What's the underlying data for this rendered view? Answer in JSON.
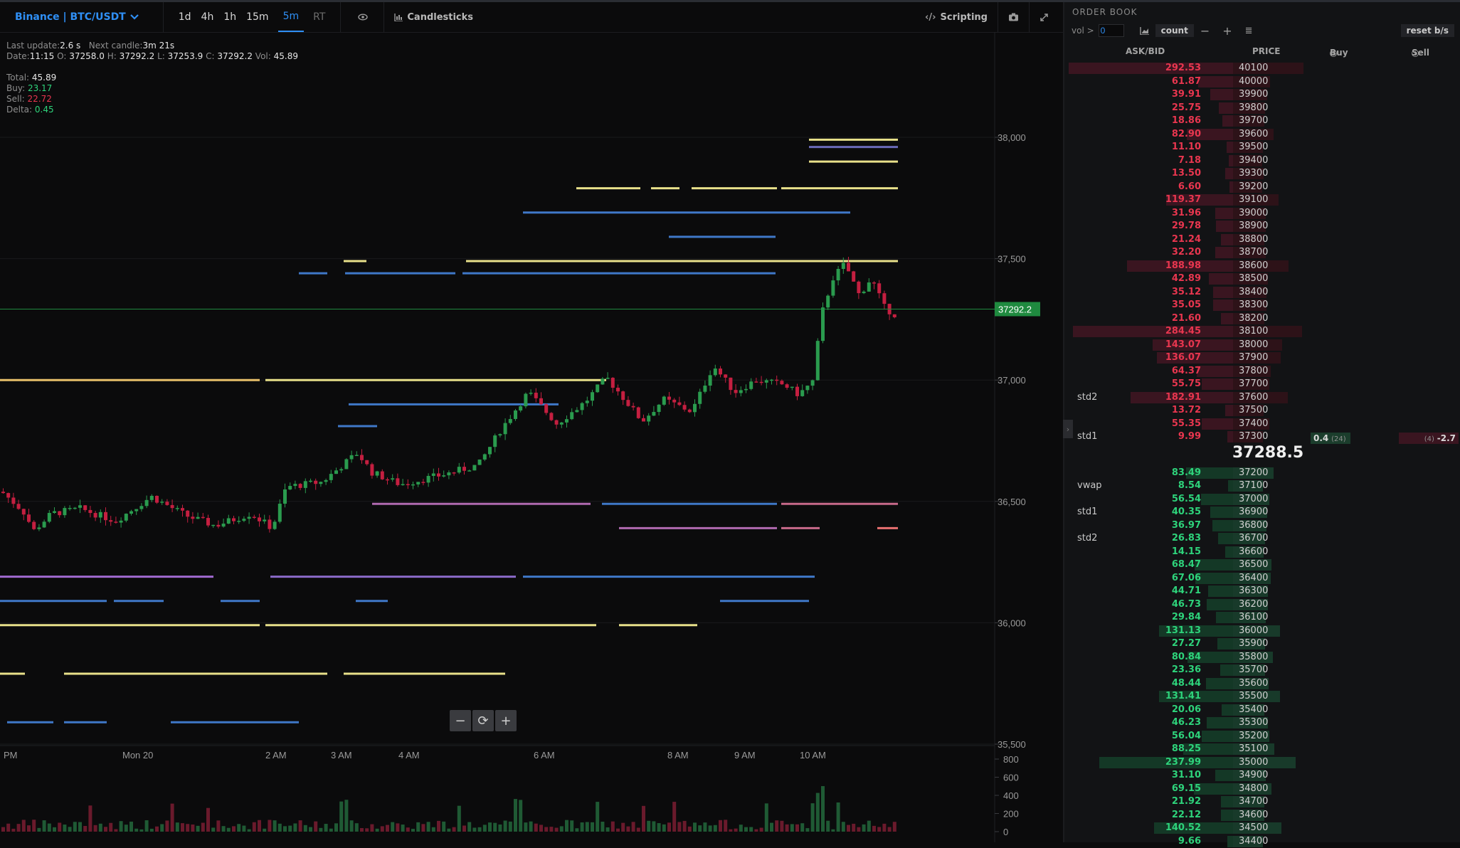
{
  "toolbar": {
    "symbol": "Binance | BTC/USDT",
    "timeframes": [
      "1d",
      "4h",
      "1h",
      "15m",
      "5m",
      "RT"
    ],
    "active_timeframe": "5m",
    "candles_label": "Candlesticks",
    "scripting_label": "Scripting"
  },
  "info": {
    "last_update_label": "Last update:",
    "last_update": "2.6 s",
    "next_candle_label": "Next candle:",
    "next_candle": "3m 21s",
    "date_label": "Date:",
    "date": "11:15",
    "open_label": "O:",
    "open": "37258.0",
    "high_label": "H:",
    "high": "37292.2",
    "low_label": "L:",
    "low": "37253.9",
    "close_label": "C:",
    "close": "37292.2",
    "vol_label": "Vol:",
    "vol": "45.89",
    "total_label": "Total:",
    "total": "45.89",
    "buy_label": "Buy:",
    "buy": "23.17",
    "sell_label": "Sell:",
    "sell": "22.72",
    "delta_label": "Delta:",
    "delta": "0.45"
  },
  "chart_data": {
    "type": "candlestick",
    "y_ticks": [
      "38,000",
      "37,500",
      "37,000",
      "36,500",
      "36,000",
      "35,500"
    ],
    "y_tick_values": [
      38000,
      37500,
      37000,
      36500,
      36000,
      35500
    ],
    "ylim": [
      35500,
      38500
    ],
    "x_ticks": [
      "PM",
      "Mon 20",
      "2 AM",
      "3 AM",
      "4 AM",
      "6 AM",
      "8 AM",
      "9 AM",
      "10 AM"
    ],
    "volume_ticks": [
      "800",
      "600",
      "400",
      "200",
      "0"
    ],
    "volume_tick_values": [
      800,
      600,
      400,
      200,
      0
    ],
    "last_price_label": "37292.2",
    "last_price": 37292.2
  },
  "orderbook": {
    "title": "ORDER BOOK",
    "vol_label": "vol >",
    "vol_value": "0",
    "count_label": "count",
    "reset_label": "reset b/s",
    "col_askbid": "ASK/BID",
    "col_price": "PRICE",
    "col_buy": "Buy",
    "col_sell": "Sell",
    "mid_price": "37288.5",
    "buy_at_level": "0.4",
    "buy_count": "(24)",
    "sell_count": "(4)",
    "sell_at_level": "-2.7",
    "asks": [
      {
        "amt": "292.53",
        "price": "40100"
      },
      {
        "amt": "61.87",
        "price": "40000"
      },
      {
        "amt": "39.91",
        "price": "39900"
      },
      {
        "amt": "25.75",
        "price": "39800"
      },
      {
        "amt": "18.86",
        "price": "39700"
      },
      {
        "amt": "82.90",
        "price": "39600"
      },
      {
        "amt": "11.10",
        "price": "39500"
      },
      {
        "amt": "7.18",
        "price": "39400"
      },
      {
        "amt": "13.50",
        "price": "39300"
      },
      {
        "amt": "6.60",
        "price": "39200"
      },
      {
        "amt": "119.37",
        "price": "39100"
      },
      {
        "amt": "31.96",
        "price": "39000"
      },
      {
        "amt": "29.78",
        "price": "38900"
      },
      {
        "amt": "21.24",
        "price": "38800"
      },
      {
        "amt": "32.20",
        "price": "38700"
      },
      {
        "amt": "188.98",
        "price": "38600"
      },
      {
        "amt": "42.89",
        "price": "38500"
      },
      {
        "amt": "35.12",
        "price": "38400"
      },
      {
        "amt": "35.05",
        "price": "38300"
      },
      {
        "amt": "21.60",
        "price": "38200"
      },
      {
        "amt": "284.45",
        "price": "38100"
      },
      {
        "amt": "143.07",
        "price": "38000"
      },
      {
        "amt": "136.07",
        "price": "37900"
      },
      {
        "amt": "64.37",
        "price": "37800"
      },
      {
        "amt": "55.75",
        "price": "37700"
      },
      {
        "amt": "182.91",
        "price": "37600",
        "tag": "std2"
      },
      {
        "amt": "13.72",
        "price": "37500"
      },
      {
        "amt": "55.35",
        "price": "37400"
      },
      {
        "amt": "9.99",
        "price": "37300",
        "tag": "std1"
      }
    ],
    "bids": [
      {
        "amt": "83.49",
        "price": "37200"
      },
      {
        "amt": "8.54",
        "price": "37100",
        "tag": "vwap"
      },
      {
        "amt": "56.54",
        "price": "37000"
      },
      {
        "amt": "40.35",
        "price": "36900",
        "tag": "std1"
      },
      {
        "amt": "36.97",
        "price": "36800"
      },
      {
        "amt": "26.83",
        "price": "36700",
        "tag": "std2"
      },
      {
        "amt": "14.15",
        "price": "36600"
      },
      {
        "amt": "68.47",
        "price": "36500"
      },
      {
        "amt": "67.06",
        "price": "36400"
      },
      {
        "amt": "44.71",
        "price": "36300"
      },
      {
        "amt": "46.73",
        "price": "36200"
      },
      {
        "amt": "29.84",
        "price": "36100"
      },
      {
        "amt": "131.13",
        "price": "36000"
      },
      {
        "amt": "27.27",
        "price": "35900"
      },
      {
        "amt": "80.84",
        "price": "35800"
      },
      {
        "amt": "23.36",
        "price": "35700"
      },
      {
        "amt": "48.44",
        "price": "35600"
      },
      {
        "amt": "131.41",
        "price": "35500"
      },
      {
        "amt": "20.06",
        "price": "35400"
      },
      {
        "amt": "46.23",
        "price": "35300"
      },
      {
        "amt": "56.04",
        "price": "35200"
      },
      {
        "amt": "88.25",
        "price": "35100"
      },
      {
        "amt": "237.99",
        "price": "35000"
      },
      {
        "amt": "31.10",
        "price": "34900"
      },
      {
        "amt": "69.15",
        "price": "34800"
      },
      {
        "amt": "21.92",
        "price": "34700"
      },
      {
        "amt": "22.12",
        "price": "34600"
      },
      {
        "amt": "140.52",
        "price": "34500"
      },
      {
        "amt": "9.66",
        "price": "34400"
      }
    ]
  }
}
